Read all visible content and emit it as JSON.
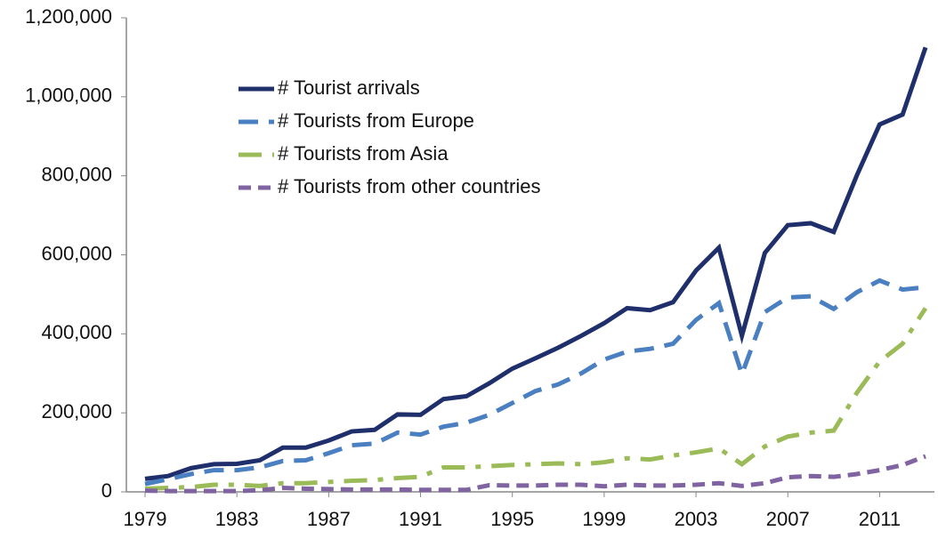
{
  "chart_data": {
    "type": "line",
    "x": [
      1979,
      1980,
      1981,
      1982,
      1983,
      1984,
      1985,
      1986,
      1987,
      1988,
      1989,
      1990,
      1991,
      1992,
      1993,
      1994,
      1995,
      1996,
      1997,
      1998,
      1999,
      2000,
      2001,
      2002,
      2003,
      2004,
      2005,
      2006,
      2007,
      2008,
      2009,
      2010,
      2011,
      2012,
      2013
    ],
    "xlim": [
      1979,
      2013
    ],
    "xticks": [
      1979,
      1983,
      1987,
      1991,
      1995,
      1999,
      2003,
      2007,
      2011
    ],
    "ylim": [
      0,
      1200000
    ],
    "yticks": [
      0,
      {
        "value": 200000,
        "label": "200,000"
      },
      {
        "value": 400000,
        "label": "400,000"
      },
      {
        "value": 600000,
        "label": "600,000"
      },
      {
        "value": 800000,
        "label": "800,000"
      },
      {
        "value": 1000000,
        "label": "1,000,000"
      },
      {
        "value": 1200000,
        "label": "1,200,000"
      }
    ],
    "grid": false,
    "series": [
      {
        "name": "# Tourist arrivals",
        "color": "#1f2f6b",
        "values": [
          33000,
          40000,
          60000,
          70000,
          71000,
          80000,
          112000,
          112000,
          130000,
          153000,
          157000,
          196000,
          195000,
          235000,
          242000,
          275000,
          312000,
          338000,
          365000,
          395000,
          427000,
          465000,
          460000,
          480000,
          560000,
          618000,
          395000,
          605000,
          675000,
          680000,
          658000,
          800000,
          930000,
          955000,
          1125000
        ]
      },
      {
        "name": "# Tourists from Europe",
        "color": "#4a7fc1",
        "values": [
          20000,
          32000,
          45000,
          55000,
          55000,
          62000,
          78000,
          80000,
          98000,
          118000,
          122000,
          150000,
          145000,
          165000,
          175000,
          195000,
          225000,
          255000,
          272000,
          300000,
          335000,
          355000,
          362000,
          375000,
          435000,
          478000,
          298000,
          455000,
          492000,
          495000,
          463000,
          505000,
          535000,
          512000,
          518000
        ]
      },
      {
        "name": "# Tourists from Asia",
        "color": "#9bbb59",
        "values": [
          8000,
          10000,
          12000,
          18000,
          18000,
          15000,
          22000,
          22000,
          25000,
          28000,
          30000,
          35000,
          38000,
          62000,
          62000,
          65000,
          68000,
          70000,
          72000,
          70000,
          75000,
          85000,
          82000,
          92000,
          100000,
          110000,
          70000,
          115000,
          140000,
          150000,
          155000,
          250000,
          330000,
          375000,
          465000
        ]
      },
      {
        "name": "# Tourists from other countries",
        "color": "#8064a2",
        "values": [
          3000,
          2000,
          2000,
          2000,
          2000,
          4000,
          10000,
          8000,
          7000,
          6000,
          6000,
          6000,
          5000,
          5000,
          5000,
          17000,
          16000,
          16000,
          18000,
          18000,
          14000,
          18000,
          16000,
          16000,
          18000,
          22000,
          15000,
          22000,
          37000,
          40000,
          38000,
          45000,
          55000,
          68000,
          90000
        ]
      }
    ]
  }
}
